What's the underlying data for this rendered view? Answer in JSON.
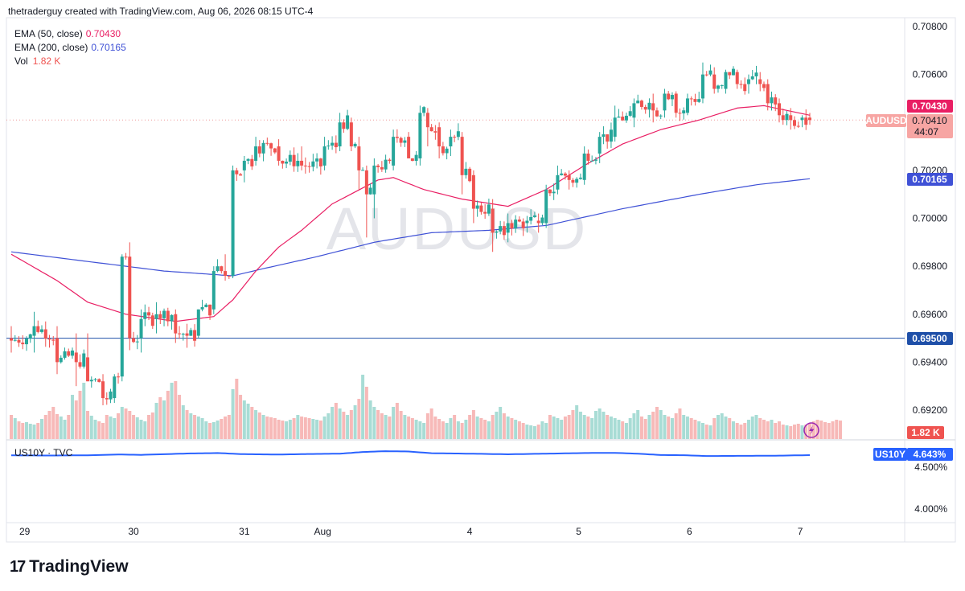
{
  "header": {
    "attribution": "thetraderguy created with TradingView.com, Aug 06, 2026 08:15 UTC-4"
  },
  "watermark": "AUDUSD",
  "legend": {
    "ema50": {
      "label": "EMA (50, close)",
      "value": "0.70430",
      "color": "#e91e63"
    },
    "ema200": {
      "label": "EMA (200, close)",
      "value": "0.70165",
      "color": "#3f51d6"
    },
    "vol": {
      "label": "Vol",
      "value": "1.82 K"
    }
  },
  "sub_legend": {
    "label": "US10Y · TVC"
  },
  "price_scale": {
    "ticks": [
      "0.70800",
      "0.70600",
      "0.70400",
      "0.70200",
      "0.70000",
      "0.69800",
      "0.69600",
      "0.69400",
      "0.69200"
    ],
    "badges": {
      "ema50": "0.70430",
      "symbol": "AUDUSD",
      "last": "0.70410",
      "countdown": "44:07",
      "ema200": "0.70165",
      "hline": "0.69500",
      "vol": "1.82 K"
    }
  },
  "sub_scale": {
    "ticks": [
      "4.500%",
      "4.000%"
    ],
    "badge_symbol": "US10Y",
    "badge_value": "4.643%"
  },
  "time_axis": {
    "labels": [
      "29",
      "30",
      "31",
      "Aug",
      "4",
      "5",
      "6",
      "7"
    ]
  },
  "colors": {
    "up": "#26a69a",
    "down": "#ef5350",
    "vol_up": "#a8dcd5",
    "vol_down": "#f7b9b8",
    "us10y": "#2962ff",
    "hline": "#1e4fa8"
  },
  "footer": {
    "brand": "TradingView"
  },
  "chart_data": {
    "type": "candlestick",
    "symbol": "AUDUSD",
    "ylim": [
      0.691,
      0.7085
    ],
    "horizontal_line": 0.695,
    "last_price": 0.7041,
    "ema50_last": 0.7043,
    "ema200_last": 0.70165,
    "volume_last": "1.82 K",
    "anchors": [
      {
        "t": 0,
        "o": 0.695,
        "h": 0.6955,
        "l": 0.6944,
        "c": 0.6949
      },
      {
        "t": 6,
        "o": 0.6951,
        "h": 0.6961,
        "l": 0.6944,
        "c": 0.6955
      },
      {
        "t": 12,
        "o": 0.695,
        "h": 0.6955,
        "l": 0.6935,
        "c": 0.694
      },
      {
        "t": 17,
        "o": 0.6944,
        "h": 0.6952,
        "l": 0.693,
        "c": 0.694
      },
      {
        "t": 20,
        "o": 0.6942,
        "h": 0.6952,
        "l": 0.6932,
        "c": 0.6932
      },
      {
        "t": 24,
        "o": 0.6932,
        "h": 0.6935,
        "l": 0.6922,
        "c": 0.6925
      },
      {
        "t": 27,
        "o": 0.6925,
        "h": 0.6935,
        "l": 0.6923,
        "c": 0.6934
      },
      {
        "t": 29,
        "o": 0.6934,
        "h": 0.6985,
        "l": 0.6932,
        "c": 0.6984
      },
      {
        "t": 31,
        "o": 0.6984,
        "h": 0.699,
        "l": 0.6945,
        "c": 0.695
      },
      {
        "t": 34,
        "o": 0.695,
        "h": 0.6962,
        "l": 0.6944,
        "c": 0.6958
      },
      {
        "t": 38,
        "o": 0.6958,
        "h": 0.6965,
        "l": 0.6952,
        "c": 0.696
      },
      {
        "t": 43,
        "o": 0.696,
        "h": 0.6962,
        "l": 0.6948,
        "c": 0.6952
      },
      {
        "t": 46,
        "o": 0.6952,
        "h": 0.6956,
        "l": 0.6946,
        "c": 0.6951
      },
      {
        "t": 49,
        "o": 0.6951,
        "h": 0.6962,
        "l": 0.695,
        "c": 0.6962
      },
      {
        "t": 53,
        "o": 0.6962,
        "h": 0.698,
        "l": 0.696,
        "c": 0.6978
      },
      {
        "t": 56,
        "o": 0.6978,
        "h": 0.6985,
        "l": 0.6974,
        "c": 0.6976
      },
      {
        "t": 58,
        "o": 0.6976,
        "h": 0.7022,
        "l": 0.6975,
        "c": 0.702
      },
      {
        "t": 61,
        "o": 0.702,
        "h": 0.7026,
        "l": 0.7015,
        "c": 0.7024
      },
      {
        "t": 64,
        "o": 0.7024,
        "h": 0.7034,
        "l": 0.7022,
        "c": 0.703
      },
      {
        "t": 70,
        "o": 0.703,
        "h": 0.7033,
        "l": 0.7022,
        "c": 0.7024
      },
      {
        "t": 76,
        "o": 0.7024,
        "h": 0.703,
        "l": 0.702,
        "c": 0.7022
      },
      {
        "t": 82,
        "o": 0.7022,
        "h": 0.7034,
        "l": 0.702,
        "c": 0.703
      },
      {
        "t": 86,
        "o": 0.703,
        "h": 0.7044,
        "l": 0.7028,
        "c": 0.704
      },
      {
        "t": 89,
        "o": 0.704,
        "h": 0.7042,
        "l": 0.7028,
        "c": 0.703
      },
      {
        "t": 91,
        "o": 0.703,
        "h": 0.7034,
        "l": 0.7012,
        "c": 0.702
      },
      {
        "t": 93,
        "o": 0.702,
        "h": 0.7022,
        "l": 0.6992,
        "c": 0.701
      },
      {
        "t": 95,
        "o": 0.701,
        "h": 0.7025,
        "l": 0.7,
        "c": 0.7022
      },
      {
        "t": 100,
        "o": 0.7022,
        "h": 0.7037,
        "l": 0.702,
        "c": 0.7034
      },
      {
        "t": 104,
        "o": 0.7034,
        "h": 0.7036,
        "l": 0.7025,
        "c": 0.7025
      },
      {
        "t": 107,
        "o": 0.7025,
        "h": 0.7047,
        "l": 0.7022,
        "c": 0.7044
      },
      {
        "t": 109,
        "o": 0.7044,
        "h": 0.7046,
        "l": 0.703,
        "c": 0.7038
      },
      {
        "t": 112,
        "o": 0.7038,
        "h": 0.704,
        "l": 0.7025,
        "c": 0.703
      },
      {
        "t": 115,
        "o": 0.703,
        "h": 0.7037,
        "l": 0.7026,
        "c": 0.7034
      },
      {
        "t": 118,
        "o": 0.7034,
        "h": 0.7036,
        "l": 0.701,
        "c": 0.7018
      },
      {
        "t": 121,
        "o": 0.7018,
        "h": 0.702,
        "l": 0.6998,
        "c": 0.7004
      },
      {
        "t": 126,
        "o": 0.7004,
        "h": 0.7008,
        "l": 0.6986,
        "c": 0.6994
      },
      {
        "t": 130,
        "o": 0.6994,
        "h": 0.7002,
        "l": 0.699,
        "c": 0.6998
      },
      {
        "t": 135,
        "o": 0.6998,
        "h": 0.7001,
        "l": 0.6994,
        "c": 0.6999
      },
      {
        "t": 138,
        "o": 0.6999,
        "h": 0.7002,
        "l": 0.6994,
        "c": 0.6998
      },
      {
        "t": 140,
        "o": 0.6998,
        "h": 0.7014,
        "l": 0.6996,
        "c": 0.7012
      },
      {
        "t": 143,
        "o": 0.7012,
        "h": 0.7022,
        "l": 0.701,
        "c": 0.7018
      },
      {
        "t": 146,
        "o": 0.7018,
        "h": 0.702,
        "l": 0.7012,
        "c": 0.7016
      },
      {
        "t": 150,
        "o": 0.7016,
        "h": 0.703,
        "l": 0.7014,
        "c": 0.7027
      },
      {
        "t": 154,
        "o": 0.7027,
        "h": 0.7036,
        "l": 0.7023,
        "c": 0.7034
      },
      {
        "t": 158,
        "o": 0.7034,
        "h": 0.7047,
        "l": 0.7032,
        "c": 0.7042
      },
      {
        "t": 163,
        "o": 0.7042,
        "h": 0.705,
        "l": 0.7038,
        "c": 0.7048
      },
      {
        "t": 168,
        "o": 0.7048,
        "h": 0.7052,
        "l": 0.704,
        "c": 0.7045
      },
      {
        "t": 171,
        "o": 0.7045,
        "h": 0.7054,
        "l": 0.7042,
        "c": 0.7052
      },
      {
        "t": 174,
        "o": 0.7052,
        "h": 0.7053,
        "l": 0.7042,
        "c": 0.7044
      },
      {
        "t": 177,
        "o": 0.7044,
        "h": 0.7052,
        "l": 0.7043,
        "c": 0.705
      },
      {
        "t": 181,
        "o": 0.705,
        "h": 0.7065,
        "l": 0.7048,
        "c": 0.706
      },
      {
        "t": 184,
        "o": 0.706,
        "h": 0.7063,
        "l": 0.7052,
        "c": 0.7054
      },
      {
        "t": 187,
        "o": 0.7054,
        "h": 0.7062,
        "l": 0.7052,
        "c": 0.7061
      },
      {
        "t": 190,
        "o": 0.7061,
        "h": 0.7062,
        "l": 0.7054,
        "c": 0.7056
      },
      {
        "t": 193,
        "o": 0.7056,
        "h": 0.706,
        "l": 0.7052,
        "c": 0.7058
      },
      {
        "t": 196,
        "o": 0.7058,
        "h": 0.7061,
        "l": 0.7053,
        "c": 0.7056
      },
      {
        "t": 198,
        "o": 0.7056,
        "h": 0.7058,
        "l": 0.7045,
        "c": 0.7048
      },
      {
        "t": 201,
        "o": 0.7048,
        "h": 0.705,
        "l": 0.704,
        "c": 0.7043
      },
      {
        "t": 204,
        "o": 0.7043,
        "h": 0.7046,
        "l": 0.7037,
        "c": 0.7041
      },
      {
        "t": 207,
        "o": 0.7041,
        "h": 0.7043,
        "l": 0.7038,
        "c": 0.7042
      },
      {
        "t": 209,
        "o": 0.7042,
        "h": 0.7044,
        "l": 0.7039,
        "c": 0.7041
      }
    ],
    "ema50": [
      [
        0,
        0.6985
      ],
      [
        12,
        0.6974
      ],
      [
        20,
        0.6965
      ],
      [
        30,
        0.696
      ],
      [
        43,
        0.6957
      ],
      [
        53,
        0.6959
      ],
      [
        58,
        0.6966
      ],
      [
        64,
        0.6978
      ],
      [
        70,
        0.6988
      ],
      [
        76,
        0.6995
      ],
      [
        84,
        0.7006
      ],
      [
        90,
        0.7011
      ],
      [
        96,
        0.7016
      ],
      [
        100,
        0.7017
      ],
      [
        108,
        0.7012
      ],
      [
        118,
        0.7008
      ],
      [
        130,
        0.7005
      ],
      [
        140,
        0.7012
      ],
      [
        150,
        0.7022
      ],
      [
        160,
        0.7031
      ],
      [
        170,
        0.7037
      ],
      [
        180,
        0.7041
      ],
      [
        190,
        0.7046
      ],
      [
        197,
        0.7047
      ],
      [
        203,
        0.7045
      ],
      [
        209,
        0.7043
      ]
    ],
    "ema200": [
      [
        0,
        0.6986
      ],
      [
        20,
        0.6982
      ],
      [
        40,
        0.6978
      ],
      [
        58,
        0.6976
      ],
      [
        66,
        0.6979
      ],
      [
        80,
        0.6984
      ],
      [
        95,
        0.699
      ],
      [
        110,
        0.6994
      ],
      [
        125,
        0.6995
      ],
      [
        140,
        0.6997
      ],
      [
        160,
        0.7004
      ],
      [
        180,
        0.701
      ],
      [
        195,
        0.7014
      ],
      [
        209,
        0.70165
      ]
    ],
    "volume": [
      0.3,
      0.26,
      0.22,
      0.2,
      0.21,
      0.19,
      0.18,
      0.2,
      0.25,
      0.3,
      0.35,
      0.4,
      0.31,
      0.28,
      0.24,
      0.3,
      0.55,
      0.48,
      0.6,
      0.7,
      0.35,
      0.29,
      0.24,
      0.22,
      0.2,
      0.3,
      0.28,
      0.26,
      0.32,
      0.4,
      0.38,
      0.35,
      0.3,
      0.27,
      0.24,
      0.22,
      0.3,
      0.33,
      0.45,
      0.52,
      0.48,
      0.6,
      0.7,
      0.72,
      0.55,
      0.42,
      0.36,
      0.32,
      0.3,
      0.28,
      0.26,
      0.22,
      0.2,
      0.21,
      0.23,
      0.25,
      0.28,
      0.3,
      0.62,
      0.75,
      0.55,
      0.48,
      0.44,
      0.4,
      0.36,
      0.33,
      0.3,
      0.28,
      0.27,
      0.26,
      0.24,
      0.23,
      0.22,
      0.24,
      0.26,
      0.3,
      0.28,
      0.27,
      0.26,
      0.25,
      0.24,
      0.23,
      0.28,
      0.32,
      0.4,
      0.45,
      0.38,
      0.34,
      0.3,
      0.36,
      0.42,
      0.5,
      0.8,
      0.65,
      0.48,
      0.4,
      0.36,
      0.32,
      0.3,
      0.28,
      0.4,
      0.45,
      0.35,
      0.3,
      0.28,
      0.26,
      0.24,
      0.22,
      0.2,
      0.32,
      0.38,
      0.28,
      0.25,
      0.22,
      0.2,
      0.26,
      0.3,
      0.22,
      0.2,
      0.24,
      0.3,
      0.36,
      0.28,
      0.26,
      0.24,
      0.22,
      0.3,
      0.34,
      0.4,
      0.32,
      0.28,
      0.26,
      0.24,
      0.22,
      0.2,
      0.18,
      0.17,
      0.16,
      0.18,
      0.22,
      0.2,
      0.3,
      0.28,
      0.26,
      0.24,
      0.28,
      0.3,
      0.36,
      0.42,
      0.34,
      0.3,
      0.28,
      0.26,
      0.35,
      0.38,
      0.34,
      0.3,
      0.28,
      0.26,
      0.24,
      0.22,
      0.2,
      0.26,
      0.32,
      0.36,
      0.28,
      0.25,
      0.3,
      0.34,
      0.4,
      0.36,
      0.3,
      0.28,
      0.26,
      0.32,
      0.38,
      0.3,
      0.28,
      0.26,
      0.24,
      0.22,
      0.2,
      0.18,
      0.17,
      0.26,
      0.3,
      0.32,
      0.28,
      0.26,
      0.22,
      0.2,
      0.18,
      0.2,
      0.24,
      0.28,
      0.3,
      0.26,
      0.24,
      0.22,
      0.24,
      0.2,
      0.22,
      0.18,
      0.17,
      0.16,
      0.18,
      0.19,
      0.17,
      0.18,
      0.2,
      0.22,
      0.24,
      0.23,
      0.21,
      0.2,
      0.22,
      0.24,
      0.23
    ],
    "us10y": [
      [
        0,
        4.64
      ],
      [
        10,
        4.638
      ],
      [
        20,
        4.641
      ],
      [
        28,
        4.65
      ],
      [
        34,
        4.646
      ],
      [
        46,
        4.662
      ],
      [
        54,
        4.668
      ],
      [
        60,
        4.655
      ],
      [
        70,
        4.65
      ],
      [
        78,
        4.656
      ],
      [
        86,
        4.66
      ],
      [
        92,
        4.68
      ],
      [
        98,
        4.69
      ],
      [
        104,
        4.686
      ],
      [
        110,
        4.666
      ],
      [
        120,
        4.66
      ],
      [
        130,
        4.653
      ],
      [
        140,
        4.66
      ],
      [
        150,
        4.668
      ],
      [
        158,
        4.67
      ],
      [
        164,
        4.66
      ],
      [
        170,
        4.644
      ],
      [
        176,
        4.642
      ],
      [
        182,
        4.632
      ],
      [
        190,
        4.634
      ],
      [
        200,
        4.636
      ],
      [
        209,
        4.643
      ]
    ],
    "us10y_ylim": [
      3.93,
      4.72
    ],
    "x_label_positions": {
      "29": 3.5,
      "30": 32,
      "31": 61,
      "Aug": 81.5,
      "4": 120,
      "5": 148.5,
      "6": 177.5,
      "7": 206.5
    }
  }
}
